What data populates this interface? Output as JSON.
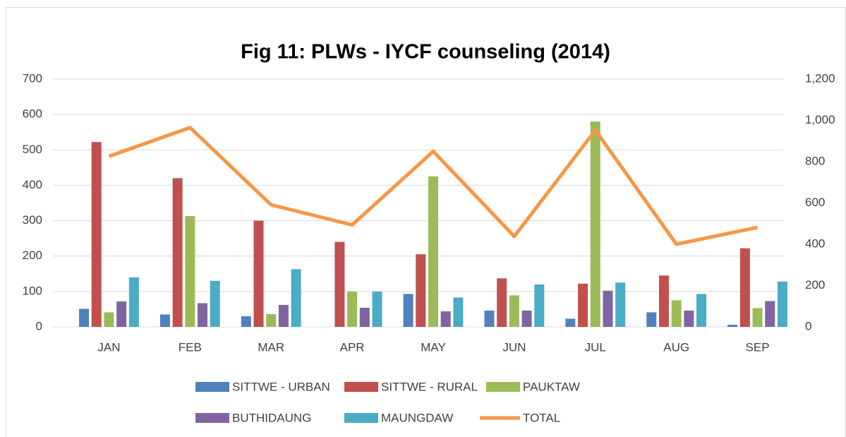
{
  "chart_data": {
    "type": "bar",
    "title": "Fig 11: PLWs - IYCF counseling (2014)",
    "categories": [
      "JAN",
      "FEB",
      "MAR",
      "APR",
      "MAY",
      "JUN",
      "JUL",
      "AUG",
      "SEP"
    ],
    "series": [
      {
        "name": "SITTWE - URBAN",
        "color": "#4f81bd",
        "values": [
          51,
          35,
          30,
          0,
          93,
          46,
          23,
          41,
          6
        ]
      },
      {
        "name": "SITTWE - RURAL",
        "color": "#c0504d",
        "values": [
          522,
          420,
          300,
          240,
          205,
          137,
          122,
          145,
          222
        ]
      },
      {
        "name": "PAUKTAW",
        "color": "#9bbb59",
        "values": [
          41,
          313,
          36,
          100,
          425,
          89,
          580,
          75,
          53
        ]
      },
      {
        "name": "BUTHIDAUNG",
        "color": "#8064a2",
        "values": [
          72,
          67,
          62,
          54,
          44,
          46,
          102,
          46,
          73
        ]
      },
      {
        "name": "MAUNGDAW",
        "color": "#4bacc6",
        "values": [
          140,
          130,
          163,
          100,
          83,
          120,
          125,
          93,
          128
        ]
      },
      {
        "name": "TOTAL",
        "color": "#f79646",
        "type": "line",
        "axis": "y2",
        "values": [
          826,
          965,
          591,
          494,
          850,
          438,
          952,
          400,
          482
        ]
      }
    ],
    "ylim": [
      0,
      700
    ],
    "yticks": [
      0,
      100,
      200,
      300,
      400,
      500,
      600,
      700
    ],
    "y2lim": [
      0,
      1200
    ],
    "y2ticks": [
      0,
      200,
      400,
      600,
      800,
      {
        "value": 1000,
        "label": "1,000"
      },
      {
        "value": 1200,
        "label": "1,200"
      }
    ],
    "grid": true,
    "legend": "bottom"
  }
}
